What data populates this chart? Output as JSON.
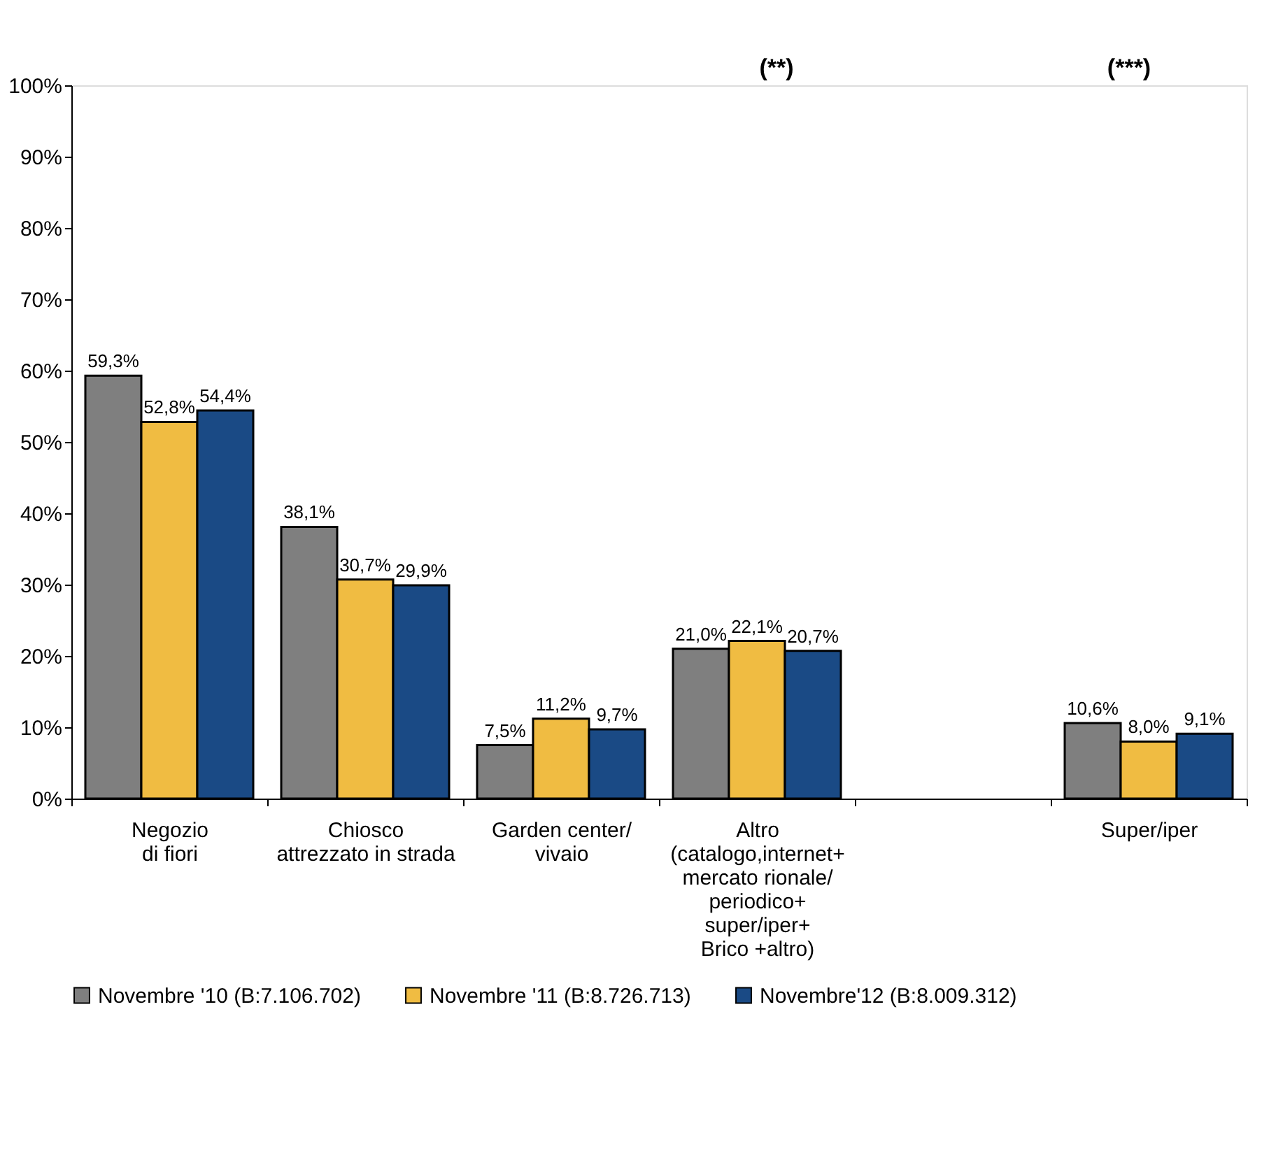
{
  "chart_data": {
    "type": "bar",
    "categories": [
      "Negozio\ndi fiori",
      "Chiosco\nattrezzato in strada",
      "Garden center/\nvivaio",
      "Altro\n(catalogo,internet+\nmercato rionale/\nperiodico+\nsuper/iper+\nBrico +altro)",
      null,
      "Super/iper"
    ],
    "series": [
      {
        "name": "Novembre '10 (B:7.106.702)",
        "color": "#7f7f7f",
        "values": [
          59.3,
          38.1,
          7.5,
          21.0,
          null,
          10.6
        ],
        "value_labels": [
          "59,3%",
          "38,1%",
          "7,5%",
          "21,0%",
          null,
          "10,6%"
        ]
      },
      {
        "name": "Novembre '11 (B:8.726.713)",
        "color": "#f0bc42",
        "values": [
          52.8,
          30.7,
          11.2,
          22.1,
          null,
          8.0
        ],
        "value_labels": [
          "52,8%",
          "30,7%",
          "11,2%",
          "22,1%",
          null,
          "8,0%"
        ]
      },
      {
        "name": "Novembre'12 (B:8.009.312)",
        "color": "#1a4a85",
        "values": [
          54.4,
          29.9,
          9.7,
          20.7,
          null,
          9.1
        ],
        "value_labels": [
          "54,4%",
          "29,9%",
          "9,7%",
          "20,7%",
          null,
          "9,1%"
        ]
      }
    ],
    "ylim": [
      0,
      100
    ],
    "yticks": [
      {
        "value": 0,
        "label": "0%"
      },
      {
        "value": 10,
        "label": "10%"
      },
      {
        "value": 20,
        "label": "20%"
      },
      {
        "value": 30,
        "label": "30%"
      },
      {
        "value": 40,
        "label": "40%"
      },
      {
        "value": 50,
        "label": "50%"
      },
      {
        "value": 60,
        "label": "60%"
      },
      {
        "value": 70,
        "label": "70%"
      },
      {
        "value": 80,
        "label": "80%"
      },
      {
        "value": 90,
        "label": "90%"
      },
      {
        "value": 100,
        "label": "100%"
      }
    ],
    "annotations": [
      "(**)",
      "(***)"
    ],
    "grid": false,
    "legend": "bottom"
  }
}
